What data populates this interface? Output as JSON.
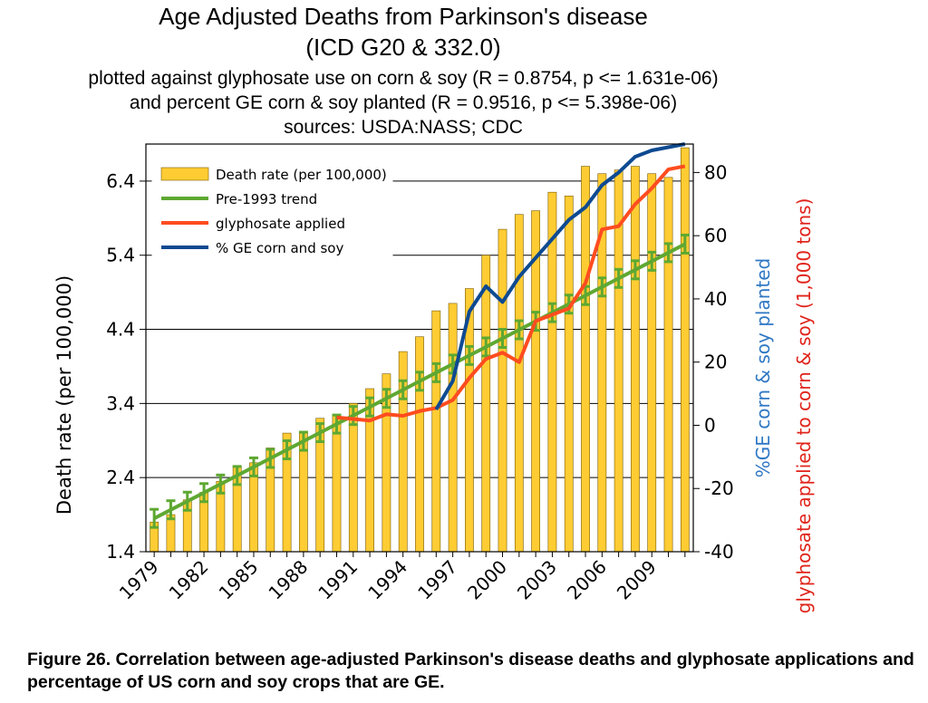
{
  "chart_data": {
    "type": "bar+line",
    "title_lines": [
      "Age Adjusted Deaths from Parkinson's disease",
      "(ICD G20 & 332.0)"
    ],
    "subtitle_lines": [
      "plotted against glyphosate use on corn & soy (R = 0.8754, p <= 1.631e-06)",
      "and percent GE corn & soy planted (R = 0.9516, p <= 5.398e-06)",
      "sources: USDA:NASS; CDC"
    ],
    "ylabel_left": "Death rate (per 100,000)",
    "ylabel_right_1": "%GE corn & soy planted",
    "ylabel_right_2": "glyphosate applied to corn & soy (1,000 tons)",
    "left_axis": {
      "min": 1.4,
      "max": 6.9,
      "ticks": [
        "1.4",
        "2.4",
        "3.4",
        "4.4",
        "5.4",
        "6.4"
      ]
    },
    "right_axis": {
      "min": -40,
      "max": 89,
      "ticks": [
        "-40",
        "-20",
        "0",
        "20",
        "40",
        "60",
        "80"
      ]
    },
    "x_tick_labels": [
      "1979",
      "1982",
      "1985",
      "1988",
      "1991",
      "1994",
      "1997",
      "2000",
      "2003",
      "2006",
      "2009"
    ],
    "years": [
      1979,
      1980,
      1981,
      1982,
      1983,
      1984,
      1985,
      1986,
      1987,
      1988,
      1989,
      1990,
      1991,
      1992,
      1993,
      1994,
      1995,
      1996,
      1997,
      1998,
      1999,
      2000,
      2001,
      2002,
      2003,
      2004,
      2005,
      2006,
      2007,
      2008,
      2009,
      2010,
      2011
    ],
    "legend": {
      "death_rate": "Death rate (per 100,000)",
      "trend": "Pre-1993 trend",
      "glyphosate": "glyphosate applied",
      "ge": "% GE corn and soy"
    },
    "series": [
      {
        "name": "Death rate (per 100,000)",
        "axis": "left",
        "style": "bar",
        "values": [
          1.8,
          1.9,
          2.1,
          2.2,
          2.35,
          2.55,
          2.6,
          2.8,
          3.0,
          3.0,
          3.2,
          3.25,
          3.4,
          3.6,
          3.8,
          4.1,
          4.3,
          4.65,
          4.75,
          4.95,
          5.4,
          5.75,
          5.95,
          6.0,
          6.25,
          6.2,
          6.6,
          6.5,
          6.55,
          6.6,
          6.5,
          6.45,
          6.85
        ]
      },
      {
        "name": "Pre-1993 trend",
        "axis": "left",
        "style": "line-errorbars",
        "x": [
          1979,
          2011
        ],
        "values": [
          1.85,
          5.55
        ]
      },
      {
        "name": "glyphosate applied",
        "axis": "right",
        "x": [
          1990,
          1991,
          1992,
          1993,
          1994,
          1995,
          1996,
          1997,
          1998,
          1999,
          2000,
          2001,
          2002,
          2003,
          2004,
          2005,
          2006,
          2007,
          2008,
          2009,
          2010,
          2011
        ],
        "values": [
          2.5,
          2,
          1.5,
          3.5,
          3,
          4.5,
          5.5,
          8,
          15,
          21,
          23,
          20,
          33,
          35,
          37,
          45,
          62,
          63,
          70,
          75,
          81,
          82
        ]
      },
      {
        "name": "% GE corn and soy",
        "axis": "right",
        "x": [
          1996,
          1997,
          1998,
          1999,
          2000,
          2001,
          2002,
          2003,
          2004,
          2005,
          2006,
          2007,
          2008,
          2009,
          2010,
          2011
        ],
        "values": [
          5,
          14,
          36,
          44,
          39,
          47,
          53,
          59,
          65,
          69,
          76,
          80,
          85,
          87,
          88,
          89
        ]
      }
    ],
    "colors": {
      "bar": "#ffcc33",
      "bar_stroke": "#7a5b00",
      "trend": "#5ea832",
      "glyphosate": "#ff4c1f",
      "ge": "#0d4a91",
      "label_blue": "#2f78c4",
      "label_red": "#e0241b"
    }
  },
  "caption": "Figure 26. Correlation between age-adjusted Parkinson's disease deaths and glyphosate applications and percentage of US corn and soy crops that are GE."
}
